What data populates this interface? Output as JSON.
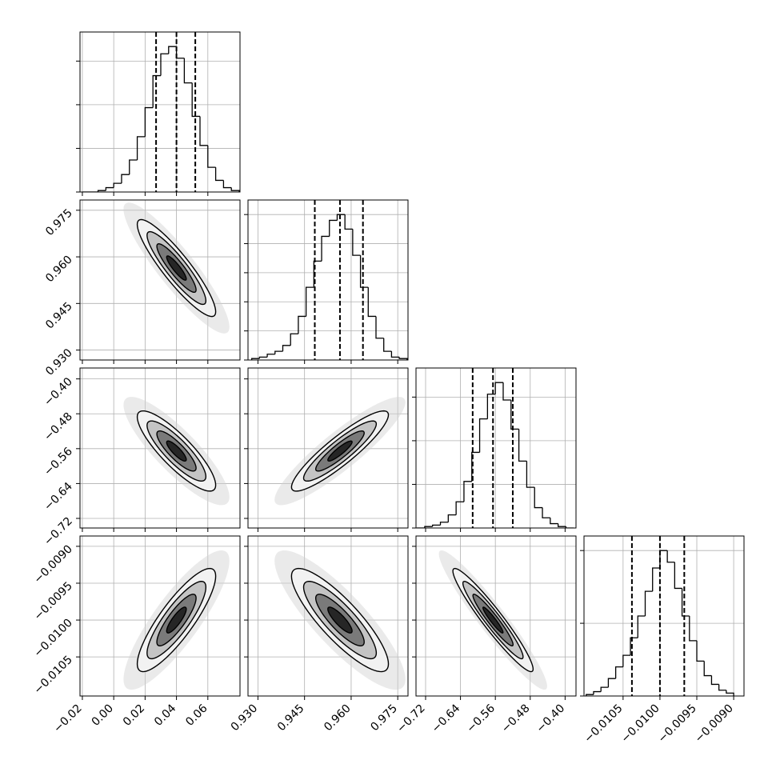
{
  "chart_data": {
    "type": "corner",
    "grid": true,
    "line_color": "#000000",
    "parameters": [
      {
        "xlim": [
          -0.0215,
          0.0805
        ],
        "ticks": [
          {
            "value": -0.02,
            "label": "−0.02"
          },
          {
            "value": 0.0,
            "label": "0.00"
          },
          {
            "value": 0.02,
            "label": "0.02"
          },
          {
            "value": 0.04,
            "label": "0.04"
          },
          {
            "value": 0.06,
            "label": "0.06"
          }
        ],
        "mean": 0.04,
        "std": 0.0125,
        "quantiles": [
          0.027,
          0.04,
          0.052
        ],
        "bins": [
          -0.02,
          -0.015,
          -0.01,
          -0.005,
          0.0,
          0.005,
          0.01,
          0.015,
          0.02,
          0.025,
          0.03,
          0.035,
          0.04,
          0.045,
          0.05,
          0.055,
          0.06,
          0.065,
          0.07,
          0.075,
          0.08
        ],
        "counts": [
          0,
          0,
          1,
          3,
          6,
          12,
          22,
          38,
          58,
          80,
          95,
          100,
          92,
          75,
          52,
          32,
          17,
          8,
          3,
          1
        ],
        "hist_ylim": [
          0,
          110
        ],
        "hist_yticks": [
          0,
          30,
          60,
          90
        ]
      },
      {
        "xlim": [
          0.9268,
          0.9783
        ],
        "ticks": [
          {
            "value": 0.93,
            "label": "0.930"
          },
          {
            "value": 0.945,
            "label": "0.945"
          },
          {
            "value": 0.96,
            "label": "0.960"
          },
          {
            "value": 0.975,
            "label": "0.975"
          }
        ],
        "mean": 0.9564,
        "std": 0.0078,
        "quantiles": [
          0.9483,
          0.9564,
          0.9638
        ],
        "bins": [
          0.928,
          0.9305,
          0.933,
          0.9355,
          0.938,
          0.9405,
          0.943,
          0.9455,
          0.948,
          0.9505,
          0.953,
          0.9555,
          0.958,
          0.9605,
          0.963,
          0.9655,
          0.968,
          0.9705,
          0.973,
          0.9755,
          0.978
        ],
        "counts": [
          1,
          2,
          4,
          6,
          10,
          18,
          30,
          50,
          68,
          85,
          96,
          100,
          90,
          72,
          50,
          30,
          15,
          6,
          2,
          1
        ],
        "hist_ylim": [
          0,
          110
        ],
        "hist_yticks": [
          0,
          20,
          40,
          60,
          80,
          100
        ]
      },
      {
        "xlim": [
          -0.742,
          -0.375
        ],
        "ticks": [
          {
            "value": -0.72,
            "label": "−0.72"
          },
          {
            "value": -0.64,
            "label": "−0.64"
          },
          {
            "value": -0.56,
            "label": "−0.56"
          },
          {
            "value": -0.48,
            "label": "−0.48"
          },
          {
            "value": -0.4,
            "label": "−0.40"
          }
        ],
        "mean": -0.5654,
        "std": 0.046,
        "quantiles": [
          -0.612,
          -0.5654,
          -0.52
        ],
        "bins": [
          -0.74,
          -0.722,
          -0.704,
          -0.686,
          -0.668,
          -0.65,
          -0.632,
          -0.614,
          -0.596,
          -0.578,
          -0.56,
          -0.542,
          -0.524,
          -0.506,
          -0.488,
          -0.47,
          -0.452,
          -0.434,
          -0.416,
          -0.398,
          -0.38
        ],
        "counts": [
          0,
          1,
          2,
          4,
          9,
          18,
          32,
          52,
          75,
          92,
          100,
          88,
          68,
          46,
          28,
          14,
          7,
          3,
          1,
          0
        ],
        "hist_ylim": [
          0,
          110
        ],
        "hist_yticks": [
          0,
          30,
          60,
          90
        ]
      },
      {
        "xlim": [
          -0.01103,
          -0.00886
        ],
        "ticks": [
          {
            "value": -0.0105,
            "label": "−0.0105"
          },
          {
            "value": -0.01,
            "label": "−0.0100"
          },
          {
            "value": -0.0095,
            "label": "−0.0095"
          },
          {
            "value": -0.009,
            "label": "−0.0090"
          }
        ],
        "mean": -0.01,
        "std": 0.00035,
        "quantiles": [
          -0.01038,
          -0.01,
          -0.00967
        ],
        "bins": [
          -0.011,
          -0.0109,
          -0.0108,
          -0.0107,
          -0.0106,
          -0.0105,
          -0.0104,
          -0.0103,
          -0.0102,
          -0.0101,
          -0.01,
          -0.0099,
          -0.0098,
          -0.0097,
          -0.0096,
          -0.0095,
          -0.0094,
          -0.0093,
          -0.0092,
          -0.0091,
          -0.009
        ],
        "counts": [
          1,
          3,
          6,
          12,
          20,
          28,
          40,
          55,
          72,
          88,
          100,
          92,
          74,
          55,
          38,
          24,
          14,
          8,
          4,
          2
        ],
        "hist_ylim": [
          0,
          110
        ],
        "hist_yticks": [
          0,
          50,
          100
        ]
      }
    ],
    "correlation": [
      [
        1,
        -0.9,
        -0.85,
        0.85
      ],
      [
        -0.9,
        1,
        0.9,
        -0.85
      ],
      [
        -0.85,
        0.9,
        1,
        -0.95
      ],
      [
        0.85,
        -0.85,
        -0.95,
        1
      ]
    ]
  }
}
